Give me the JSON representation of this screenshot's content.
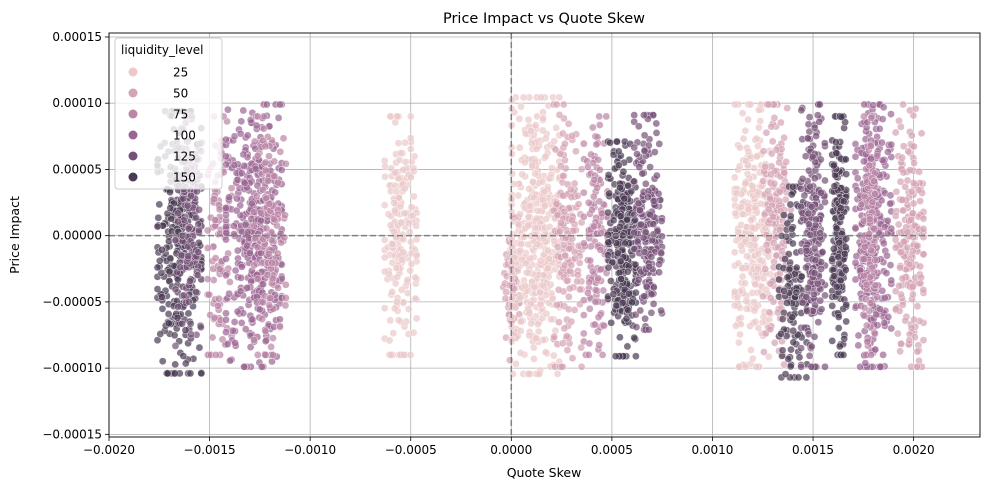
{
  "chart_data": {
    "type": "scatter",
    "title": "Price Impact vs Quote Skew",
    "xlabel": "Quote Skew",
    "ylabel": "Price Impact",
    "xlim": [
      -0.002,
      0.00233
    ],
    "ylim": [
      -0.000152,
      0.000153
    ],
    "xticks": [
      -0.002,
      -0.0015,
      -0.001,
      -0.0005,
      0.0,
      0.0005,
      0.001,
      0.0015,
      0.002
    ],
    "xtick_labels": [
      "−0.0020",
      "−0.0015",
      "−0.0010",
      "−0.0005",
      "0.0000",
      "0.0005",
      "0.0010",
      "0.0015",
      "0.0020"
    ],
    "yticks": [
      -0.00015,
      -0.0001,
      -5e-05,
      0.0,
      5e-05,
      0.0001,
      0.00015
    ],
    "ytick_labels": [
      "−0.00015",
      "−0.00010",
      "−0.00005",
      "0.00000",
      "0.00005",
      "0.00010",
      "0.00015"
    ],
    "grid": true,
    "reference_lines": {
      "x": 0,
      "y": 0,
      "style": "dashed",
      "color": "#808080"
    },
    "legend": {
      "title": "liquidity_level",
      "placement": "top-left",
      "entries": [
        {
          "label": "25",
          "color": "#ebc9c9"
        },
        {
          "label": "50",
          "color": "#d4a3b4"
        },
        {
          "label": "75",
          "color": "#bb85a5"
        },
        {
          "label": "100",
          "color": "#9b6593"
        },
        {
          "label": "125",
          "color": "#765178"
        },
        {
          "label": "150",
          "color": "#4a3a52"
        }
      ]
    },
    "clusters": [
      {
        "level": 150,
        "x_center": -0.00165,
        "x_spread": 0.00011,
        "y_center": -5e-06,
        "y_spread": 5.5e-05,
        "count": 320
      },
      {
        "level": 125,
        "x_center": -0.0016,
        "x_spread": 7e-05,
        "y_center": 0.0,
        "y_spread": 5e-05,
        "count": 120
      },
      {
        "level": 75,
        "x_center": -0.00145,
        "x_spread": 6e-05,
        "y_center": 0.0,
        "y_spread": 5e-05,
        "count": 100
      },
      {
        "level": 100,
        "x_center": -0.00128,
        "x_spread": 0.00014,
        "y_center": 0.0,
        "y_spread": 5.5e-05,
        "count": 420
      },
      {
        "level": 75,
        "x_center": -0.0012,
        "x_spread": 8e-05,
        "y_center": 0.0,
        "y_spread": 5e-05,
        "count": 120
      },
      {
        "level": 25,
        "x_center": -0.00055,
        "x_spread": 8e-05,
        "y_center": 0.0,
        "y_spread": 5e-05,
        "count": 200
      },
      {
        "level": 50,
        "x_center": 0.0,
        "x_spread": 4e-05,
        "y_center": -4e-05,
        "y_spread": 3e-05,
        "count": 70
      },
      {
        "level": 25,
        "x_center": 0.00012,
        "x_spread": 0.00012,
        "y_center": 0.0,
        "y_spread": 5.8e-05,
        "count": 420
      },
      {
        "level": 50,
        "x_center": 0.00028,
        "x_spread": 7e-05,
        "y_center": 0.0,
        "y_spread": 5.5e-05,
        "count": 160
      },
      {
        "level": 75,
        "x_center": 0.00042,
        "x_spread": 6e-05,
        "y_center": 0.0,
        "y_spread": 5e-05,
        "count": 140
      },
      {
        "level": 150,
        "x_center": 0.00055,
        "x_spread": 7e-05,
        "y_center": -1e-05,
        "y_spread": 4.5e-05,
        "count": 260
      },
      {
        "level": 125,
        "x_center": 0.00068,
        "x_spread": 7e-05,
        "y_center": 1e-05,
        "y_spread": 4.5e-05,
        "count": 200
      },
      {
        "level": 25,
        "x_center": 0.0012,
        "x_spread": 9e-05,
        "y_center": 0.0,
        "y_spread": 5.5e-05,
        "count": 280
      },
      {
        "level": 50,
        "x_center": 0.00132,
        "x_spread": 7e-05,
        "y_center": 0.0,
        "y_spread": 5.5e-05,
        "count": 160
      },
      {
        "level": 150,
        "x_center": 0.0014,
        "x_spread": 7e-05,
        "y_center": -3.5e-05,
        "y_spread": 4e-05,
        "count": 120
      },
      {
        "level": 125,
        "x_center": 0.0015,
        "x_spread": 6e-05,
        "y_center": 0.0,
        "y_spread": 5.5e-05,
        "count": 220
      },
      {
        "level": 150,
        "x_center": 0.00163,
        "x_spread": 3.5e-05,
        "y_center": 0.0,
        "y_spread": 5e-05,
        "count": 200
      },
      {
        "level": 100,
        "x_center": 0.0018,
        "x_spread": 9e-05,
        "y_center": 0.0,
        "y_spread": 5.5e-05,
        "count": 300
      },
      {
        "level": 50,
        "x_center": 0.00198,
        "x_spread": 7e-05,
        "y_center": 0.0,
        "y_spread": 5.5e-05,
        "count": 200
      },
      {
        "level": 75,
        "x_center": 0.00178,
        "x_spread": 4e-05,
        "y_center": 0.0,
        "y_spread": 5e-05,
        "count": 100
      }
    ]
  }
}
